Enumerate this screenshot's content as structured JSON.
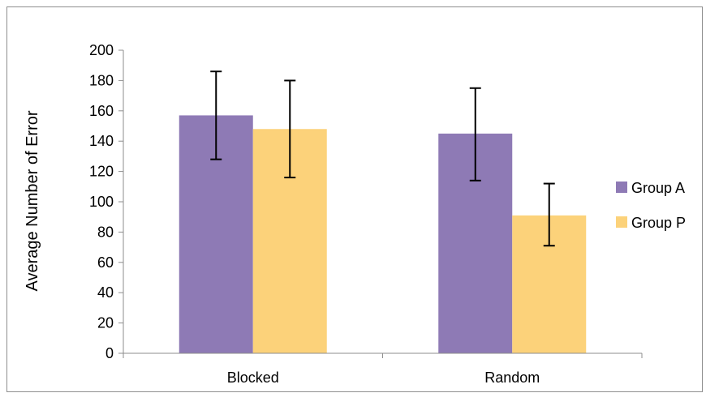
{
  "chart_data": {
    "type": "bar",
    "categories": [
      "Blocked",
      "Random"
    ],
    "series": [
      {
        "name": "Group A",
        "values": [
          157,
          145
        ],
        "error_low": [
          128,
          114
        ],
        "error_high": [
          186,
          175
        ],
        "color": "#8E7AB5"
      },
      {
        "name": "Group P",
        "values": [
          148,
          91
        ],
        "error_low": [
          116,
          71
        ],
        "error_high": [
          180,
          112
        ],
        "color": "#FCD27A"
      }
    ],
    "title": "",
    "xlabel": "",
    "ylabel": "Average Number of Error",
    "ylim": [
      0,
      200
    ],
    "yticks": [
      "0",
      "20",
      "40",
      "60",
      "80",
      "100",
      "120",
      "140",
      "160",
      "180",
      "200"
    ],
    "grid": false,
    "legend_position": "right"
  }
}
